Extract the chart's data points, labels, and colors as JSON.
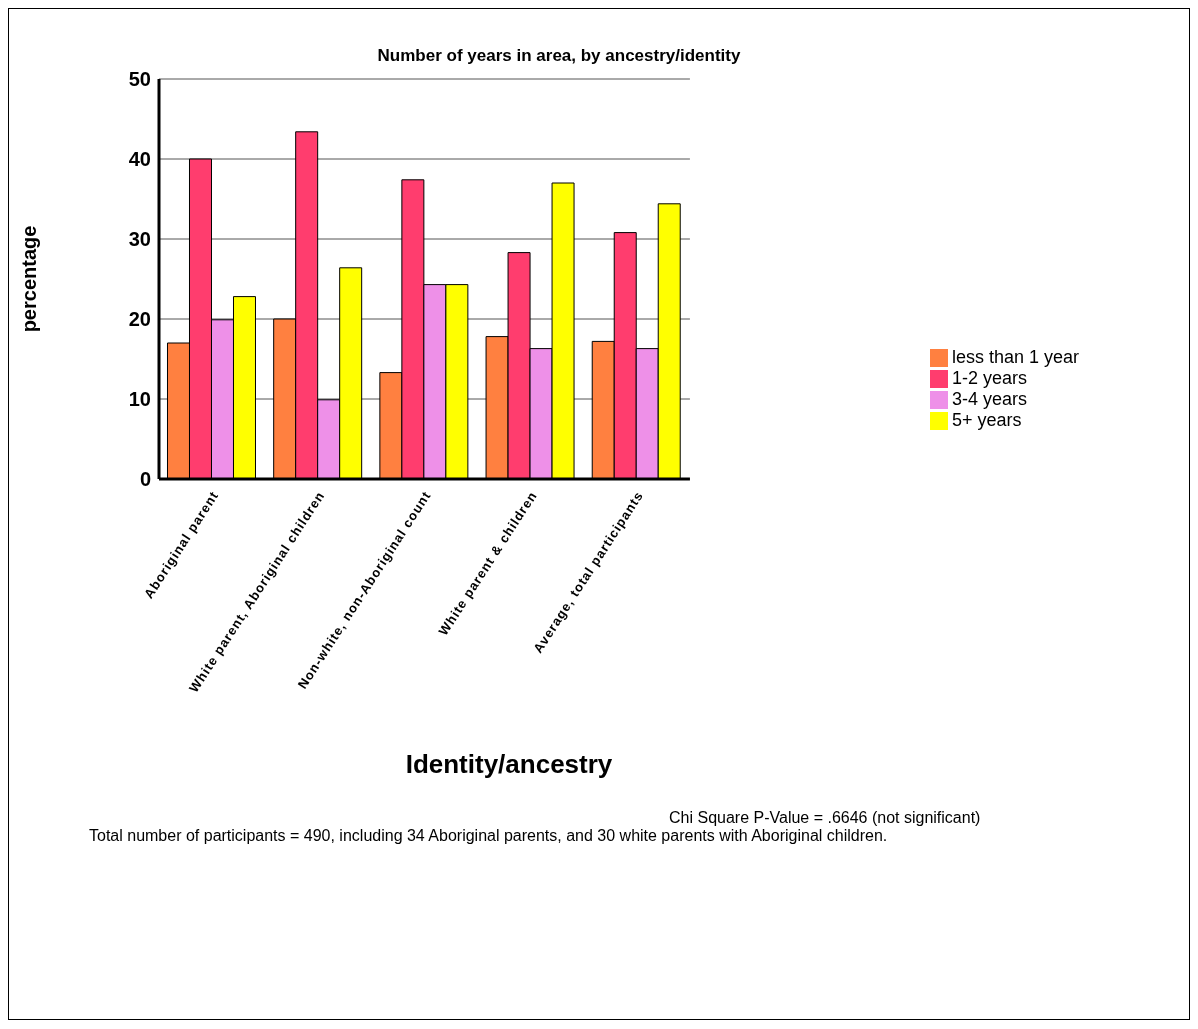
{
  "chart_data": {
    "type": "bar",
    "title": "Number of years in area, by ancestry/identity",
    "xlabel": "Identity/ancestry",
    "ylabel": "percentage",
    "categories": [
      "Aboriginal parent",
      "White parent, Aboriginal children",
      "Non-white, non-Aboriginal count",
      "White parent & children",
      "Average, total participants"
    ],
    "series": [
      {
        "name": "less than 1 year",
        "color": "#ff8040",
        "values": [
          17,
          20,
          13.3,
          17.8,
          17.2
        ]
      },
      {
        "name": "1-2 years",
        "color": "#ff3d6e",
        "values": [
          40,
          43.4,
          37.4,
          28.3,
          30.8
        ]
      },
      {
        "name": "3-4 years",
        "color": "#ee90e8",
        "values": [
          19.9,
          9.9,
          24.3,
          16.3,
          16.3
        ]
      },
      {
        "name": "5+ years",
        "color": "#ffff00",
        "values": [
          22.8,
          26.4,
          24.3,
          37,
          34.4
        ]
      }
    ],
    "ylim": [
      0,
      50
    ],
    "yticks": [
      0,
      10,
      20,
      30,
      40,
      50
    ],
    "grid": "y",
    "legend": "right",
    "annotations": [
      "Chi Square P-Value = .6646 (not significant)",
      "Total number of participants = 490, including 34 Aboriginal parents, and 30 white parents with Aboriginal children."
    ]
  }
}
